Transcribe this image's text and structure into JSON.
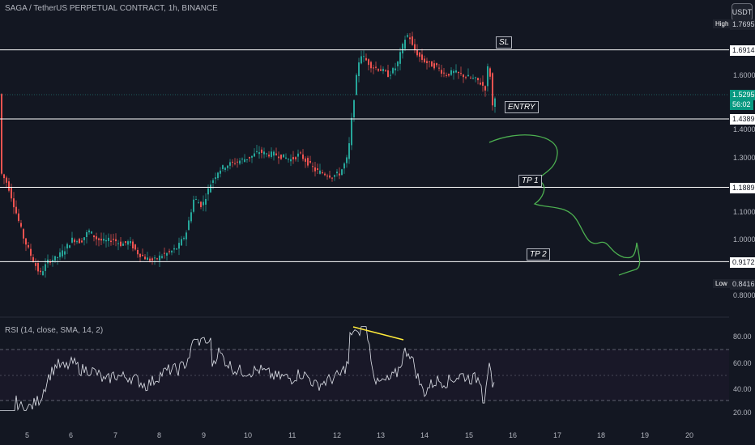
{
  "header": {
    "title": "SAGA / TetherUS PERPETUAL CONTRACT, 1h, BINANCE",
    "currency_button": "USDT"
  },
  "price_axis": {
    "ticks": [
      "1.6000",
      "1.4000",
      "1.3000",
      "1.1000",
      "1.0000",
      "0.8000"
    ],
    "high_label": "High",
    "high_value": "1.7695",
    "low_label": "Low",
    "low_value": "0.8416",
    "current_price": "1.5295",
    "countdown": "56:02"
  },
  "levels": [
    {
      "name": "SL",
      "price": 1.6914,
      "label": "1.6914"
    },
    {
      "name": "ENTRY",
      "price": 1.4389,
      "label": "1.4389"
    },
    {
      "name": "TP 1",
      "price": 1.1889,
      "label": "1.1889"
    },
    {
      "name": "TP 2",
      "price": 0.9172,
      "label": "0.9172"
    }
  ],
  "annotations": {
    "sl": "SL",
    "entry": "ENTRY",
    "tp1": "TP 1",
    "tp2": "TP 2"
  },
  "rsi": {
    "title": "RSI (14, close, SMA, 14, 2)",
    "ticks": [
      "80.00",
      "60.00",
      "40.00",
      "20.00"
    ],
    "bands": [
      70,
      50,
      30
    ]
  },
  "time_axis": {
    "labels": [
      "5",
      "6",
      "7",
      "8",
      "9",
      "10",
      "11",
      "12",
      "13",
      "14",
      "15",
      "16",
      "17",
      "18",
      "19",
      "20"
    ]
  },
  "colors": {
    "background": "#131722",
    "up": "#26a69a",
    "down": "#ef5350",
    "level_line": "#ffffff",
    "drawing": "#4caf50",
    "rsi_line": "#e0e3eb",
    "divergence": "#ffeb3b"
  }
}
